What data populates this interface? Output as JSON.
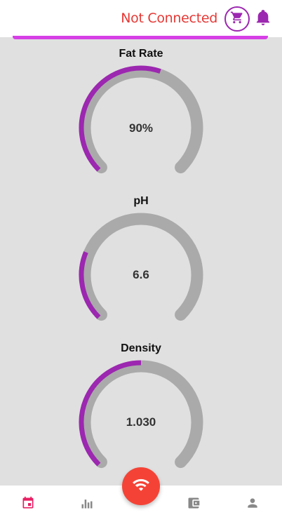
{
  "header": {
    "status_text": "Not Connected",
    "status_color": "#e53935",
    "cart_icon": "cart-icon",
    "bell_icon": "bell-icon"
  },
  "colors": {
    "accent": "#9c27b0",
    "accent_bar": "#d63fe6",
    "track": "#aaaaaa",
    "fab": "#f44336",
    "nav_active": "#e91e63",
    "nav_inactive": "#888888"
  },
  "gauges": [
    {
      "title": "Fat Rate",
      "value": "90%",
      "fill_fraction": 0.57
    },
    {
      "title": "pH",
      "value": "6.6",
      "fill_fraction": 0.25
    },
    {
      "title": "Density",
      "value": "1.030",
      "fill_fraction": 0.5
    }
  ],
  "bottom_nav": {
    "items": [
      {
        "icon": "calendar-icon",
        "active": true
      },
      {
        "icon": "bar-chart-icon",
        "active": false
      },
      {
        "icon": "wallet-icon",
        "active": false
      },
      {
        "icon": "person-icon",
        "active": false
      }
    ],
    "fab_icon": "wifi-icon"
  }
}
